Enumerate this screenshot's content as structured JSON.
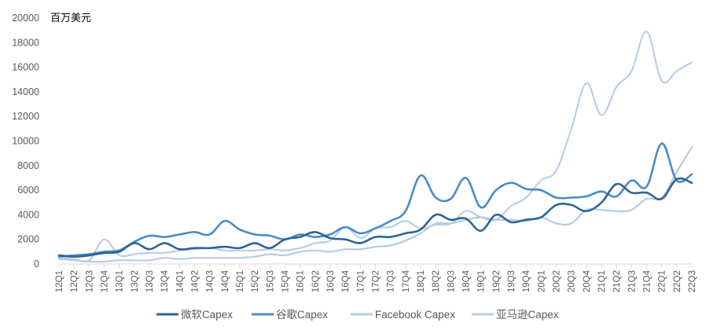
{
  "chart_data": {
    "type": "line",
    "unit_label": "百万美元",
    "ylim": [
      0,
      20000
    ],
    "yticks": [
      0,
      2000,
      4000,
      6000,
      8000,
      10000,
      12000,
      14000,
      16000,
      18000,
      20000
    ],
    "grid": false,
    "legend_position": "bottom",
    "categories": [
      "12Q1",
      "12Q2",
      "12Q3",
      "12Q4",
      "13Q1",
      "13Q2",
      "13Q3",
      "13Q4",
      "14Q1",
      "14Q2",
      "14Q3",
      "14Q4",
      "15Q1",
      "15Q2",
      "15Q3",
      "15Q4",
      "16Q1",
      "16Q2",
      "16Q3",
      "16Q4",
      "17Q1",
      "17Q2",
      "17Q3",
      "17Q4",
      "18Q1",
      "18Q2",
      "18Q3",
      "18Q4",
      "19Q1",
      "19Q2",
      "19Q3",
      "19Q4",
      "20Q1",
      "20Q2",
      "20Q3",
      "20Q4",
      "21Q1",
      "21Q2",
      "21Q3",
      "21Q4",
      "22Q1",
      "22Q2",
      "22Q3"
    ],
    "series": [
      {
        "name": "微软Capex",
        "color": "#2E6496",
        "width": 2.6,
        "values": [
          700,
          600,
          700,
          900,
          1000,
          1700,
          1200,
          1700,
          1200,
          1300,
          1300,
          1400,
          1300,
          1700,
          1300,
          2000,
          2200,
          2600,
          2100,
          2000,
          1700,
          2200,
          2200,
          2500,
          2800,
          4000,
          3600,
          3700,
          2700,
          4000,
          3400,
          3600,
          3800,
          4800,
          4800,
          4300,
          5000,
          6500,
          5800,
          5800,
          5300,
          6900,
          6600
        ]
      },
      {
        "name": "谷歌Capex",
        "color": "#4A8CC7",
        "width": 2.6,
        "values": [
          600,
          700,
          800,
          1000,
          1100,
          1800,
          2300,
          2200,
          2400,
          2600,
          2400,
          3500,
          2800,
          2400,
          2300,
          2000,
          2400,
          2200,
          2400,
          3000,
          2500,
          2900,
          3500,
          4300,
          7200,
          5400,
          5300,
          7000,
          4600,
          6000,
          6600,
          6100,
          6000,
          5400,
          5400,
          5500,
          5900,
          5500,
          6800,
          6300,
          9800,
          6800,
          7300
        ]
      },
      {
        "name": "Facebook Capex",
        "color": "#B4CCE6",
        "width": 2.2,
        "values": [
          400,
          300,
          200,
          200,
          300,
          300,
          300,
          500,
          400,
          500,
          500,
          500,
          500,
          600,
          800,
          700,
          1000,
          1100,
          1000,
          1200,
          1200,
          1400,
          1500,
          1900,
          2500,
          3300,
          3300,
          3600,
          3800,
          3600,
          3600,
          3500,
          3800,
          3300,
          3300,
          4400,
          4400,
          4300,
          4400,
          5300,
          5400,
          7500,
          9500
        ]
      },
      {
        "name": "亚马逊Capex",
        "color": "#BACFE6",
        "width": 2.2,
        "values": [
          500,
          400,
          300,
          2000,
          700,
          800,
          900,
          900,
          1100,
          1200,
          1300,
          1100,
          1100,
          1100,
          1200,
          1100,
          1300,
          1700,
          1900,
          3000,
          2100,
          2900,
          3000,
          3500,
          2900,
          3200,
          3300,
          4300,
          3800,
          3600,
          4700,
          5400,
          6800,
          7600,
          11000,
          14700,
          12100,
          14400,
          15700,
          18900,
          14900,
          15700,
          16400
        ]
      }
    ]
  }
}
